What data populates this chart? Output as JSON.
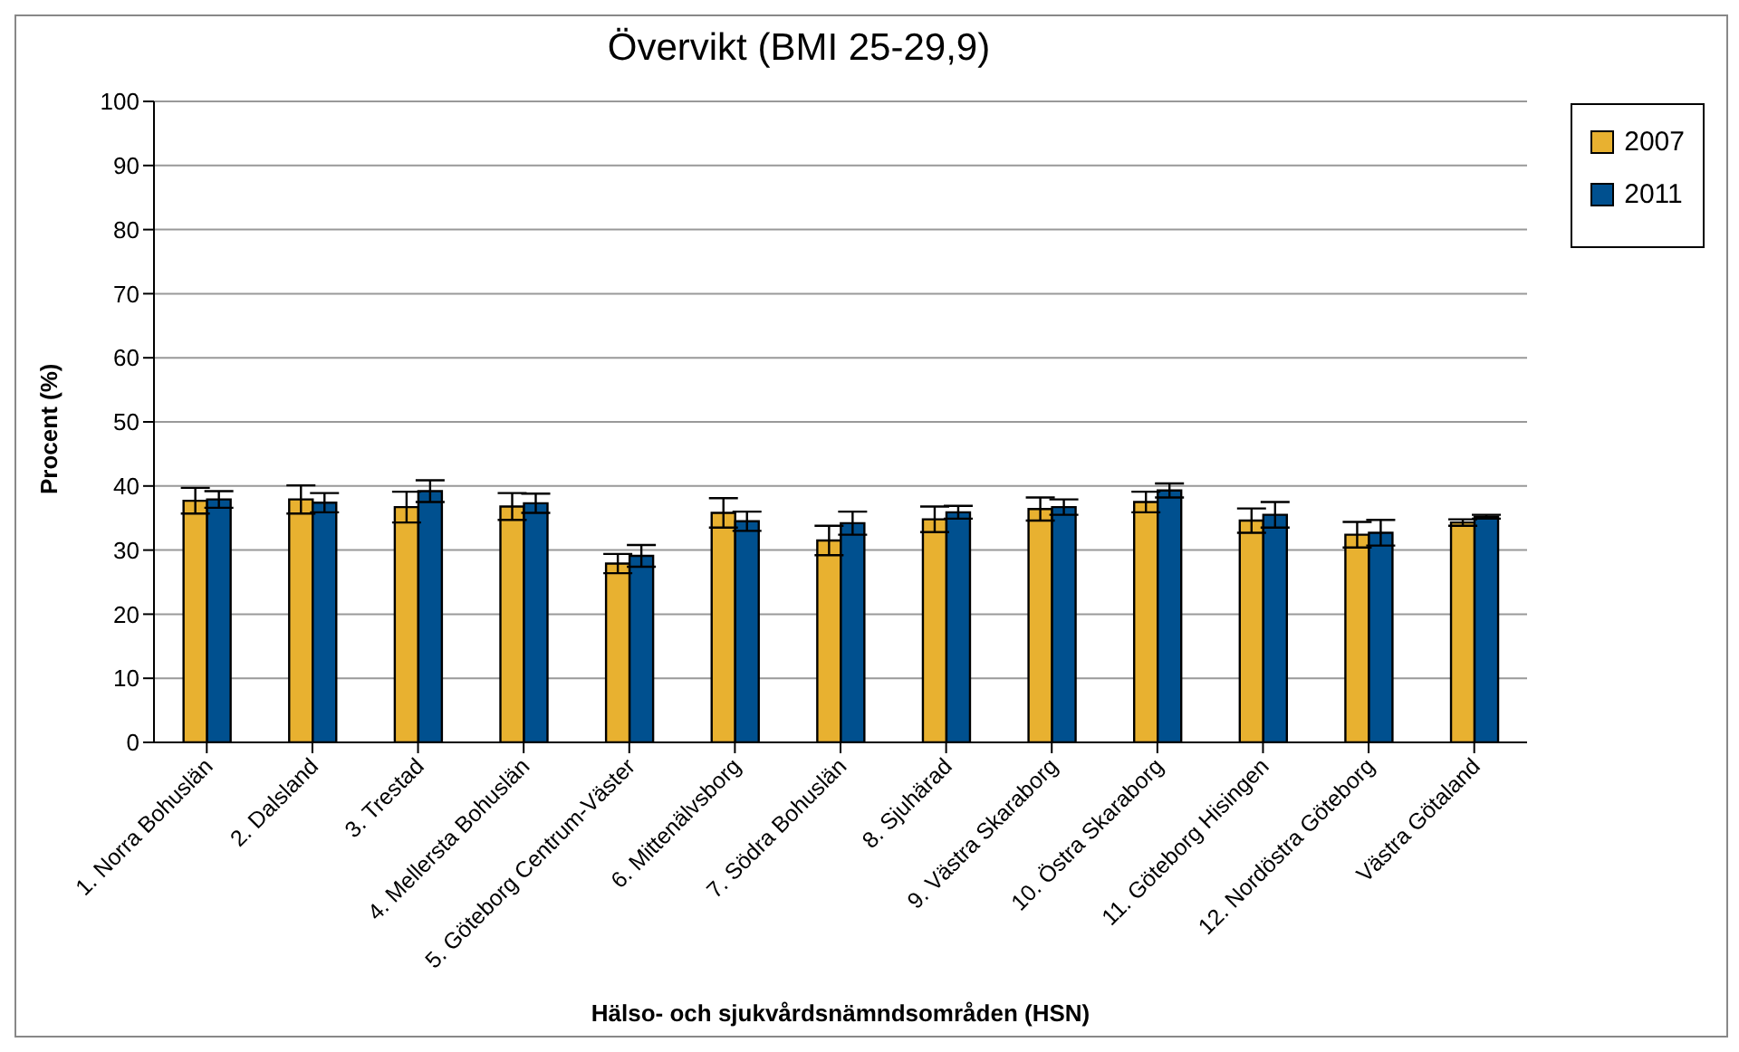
{
  "chart_data": {
    "type": "bar",
    "title": "Övervikt (BMI 25-29,9)",
    "xlabel": "Hälso- och sjukvårdsnämndsområden (HSN)",
    "ylabel": "Procent (%)",
    "categories": [
      "1. Norra Bohuslän",
      "2. Dalsland",
      "3. Trestad",
      "4. Mellersta Bohuslän",
      "5. Göteborg Centrum-Väster",
      "6. Mittenälvsborg",
      "7. Södra Bohuslän",
      "8. Sjuhärad",
      "9. Västra Skaraborg",
      "10. Östra Skaraborg",
      "11. Göteborg Hisingen",
      "12. Nordöstra Göteborg",
      "Västra Götaland"
    ],
    "series": [
      {
        "name": "2007",
        "color": "#e8b130",
        "values": [
          37.7,
          37.9,
          36.7,
          36.8,
          27.9,
          35.8,
          31.5,
          34.8,
          36.4,
          37.5,
          34.6,
          32.4,
          34.3
        ],
        "errors": [
          2.0,
          2.2,
          2.4,
          2.1,
          1.5,
          2.3,
          2.3,
          2.0,
          1.8,
          1.6,
          1.9,
          2.0,
          0.5
        ]
      },
      {
        "name": "2011",
        "color": "#00508f",
        "values": [
          37.9,
          37.4,
          39.2,
          37.3,
          29.1,
          34.5,
          34.2,
          35.9,
          36.7,
          39.3,
          35.5,
          32.7,
          35.2
        ],
        "errors": [
          1.3,
          1.5,
          1.7,
          1.5,
          1.7,
          1.5,
          1.8,
          1.0,
          1.2,
          1.1,
          2.0,
          2.0,
          0.3
        ]
      }
    ],
    "ylim": [
      0,
      100
    ],
    "yticks": [
      0,
      10,
      20,
      30,
      40,
      50,
      60,
      70,
      80,
      90,
      100
    ],
    "grid": "y",
    "legend": "top right"
  }
}
